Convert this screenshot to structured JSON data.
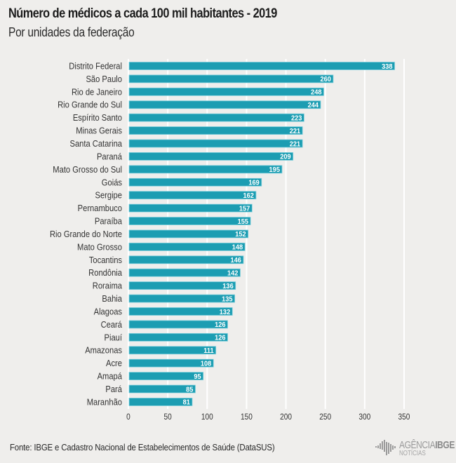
{
  "header": {
    "title": "Número de médicos a cada 100 mil habitantes - 2019",
    "subtitle": "Por unidades da federação"
  },
  "footer": {
    "source": "Fonte: IBGE e Cadastro Nacional de Estabelecimentos de Saúde (DataSUS)",
    "logo": {
      "agencia": "AGÊNCIA",
      "ibge": "IBGE",
      "noticias": "NOTÍCIAS",
      "icon": "ibge-logo-icon"
    }
  },
  "colors": {
    "bar": "#1c9db2",
    "bar_edge": "#7fcfdc",
    "background": "#efeeec",
    "grid": "#ffffff",
    "label_text": "#333333",
    "value_text": "#ffffff"
  },
  "chart_data": {
    "type": "bar",
    "orientation": "horizontal",
    "title": "Número de médicos a cada 100 mil habitantes - 2019",
    "subtitle": "Por unidades da federação",
    "xlabel": "",
    "ylabel": "",
    "xlim": [
      0,
      350
    ],
    "xticks": [
      0,
      50,
      100,
      150,
      200,
      250,
      300,
      350
    ],
    "grid": true,
    "legend": "none",
    "categories": [
      "Distrito Federal",
      "São Paulo",
      "Rio de Janeiro",
      "Rio Grande do Sul",
      "Espírito Santo",
      "Minas Gerais",
      "Santa Catarina",
      "Paraná",
      "Mato Grosso do Sul",
      "Goiás",
      "Sergipe",
      "Pernambuco",
      "Paraíba",
      "Rio Grande do Norte",
      "Mato Grosso",
      "Tocantins",
      "Rondônia",
      "Roraima",
      "Bahia",
      "Alagoas",
      "Ceará",
      "Piauí",
      "Amazonas",
      "Acre",
      "Amapá",
      "Pará",
      "Maranhão"
    ],
    "values": [
      338,
      260,
      248,
      244,
      223,
      221,
      221,
      209,
      195,
      169,
      162,
      157,
      155,
      152,
      148,
      146,
      142,
      136,
      135,
      132,
      126,
      126,
      111,
      108,
      95,
      85,
      81
    ],
    "data_labels": true
  }
}
